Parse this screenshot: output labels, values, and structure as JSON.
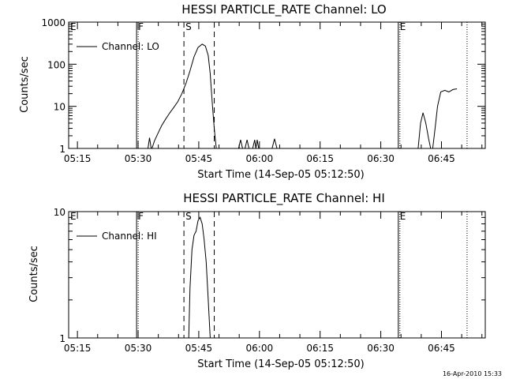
{
  "footer_timestamp": "16-Apr-2010 15:33",
  "chart_data": [
    {
      "type": "line",
      "title": "HESSI PARTICLE_RATE Channel: LO",
      "xlabel": "Start Time (14-Sep-05 05:12:50)",
      "ylabel": "Counts/sec",
      "yscale": "log",
      "xlim_min": [
        0,
        103
      ],
      "ylim": [
        1,
        1000
      ],
      "x_ticks_min": [
        2.17,
        17.17,
        32.17,
        47.17,
        62.17,
        77.17,
        92.17
      ],
      "x_tick_labels": [
        "05:15",
        "05:30",
        "05:45",
        "06:00",
        "06:15",
        "06:30",
        "06:45"
      ],
      "y_ticks": [
        1,
        10,
        100,
        1000
      ],
      "y_tick_labels": [
        "1",
        "10",
        "100",
        "1000"
      ],
      "legend": "Channel: LO",
      "markers": [
        {
          "label": "E",
          "x_min": 0,
          "style": "solid"
        },
        {
          "label": "F",
          "x_min": 16.8,
          "style": "solid"
        },
        {
          "label": "S",
          "x_min": 28.5,
          "style": "dashed"
        },
        {
          "label": "",
          "x_min": 36.0,
          "style": "dashed"
        },
        {
          "label": "E",
          "x_min": 81.5,
          "style": "solid"
        },
        {
          "label": "",
          "x_min": 98.5,
          "style": "dotted"
        }
      ],
      "series": [
        {
          "segments": [
            [
              [
                19.6,
                1
              ],
              [
                20.0,
                1.8
              ],
              [
                20.4,
                1
              ]
            ],
            [
              [
                20.6,
                1
              ],
              [
                21.2,
                1.5
              ],
              [
                22.0,
                2.2
              ],
              [
                23.0,
                3.5
              ],
              [
                24.0,
                5
              ],
              [
                25.0,
                7
              ],
              [
                26.0,
                9.5
              ],
              [
                27.0,
                13
              ],
              [
                28.0,
                20
              ],
              [
                29.0,
                35
              ],
              [
                30.0,
                70
              ],
              [
                31.0,
                150
              ],
              [
                32.0,
                250
              ],
              [
                33.0,
                300
              ],
              [
                33.8,
                270
              ],
              [
                34.5,
                160
              ],
              [
                35.0,
                60
              ],
              [
                35.5,
                12
              ],
              [
                36.0,
                3
              ],
              [
                36.5,
                1
              ]
            ],
            [
              [
                42.0,
                1
              ],
              [
                42.5,
                1.6
              ],
              [
                43.0,
                1
              ]
            ],
            [
              [
                43.6,
                1
              ],
              [
                44.1,
                1.6
              ],
              [
                44.6,
                1
              ]
            ],
            [
              [
                45.5,
                1
              ],
              [
                46.0,
                1.6
              ],
              [
                46.3,
                1
              ],
              [
                46.6,
                1.6
              ],
              [
                47.0,
                1
              ]
            ],
            [
              [
                50.3,
                1
              ],
              [
                50.9,
                1.7
              ],
              [
                51.5,
                1
              ]
            ],
            [
              [
                86.4,
                1
              ],
              [
                87.0,
                4
              ],
              [
                87.6,
                7
              ],
              [
                88.3,
                4
              ],
              [
                89.0,
                1.7
              ],
              [
                89.5,
                1
              ]
            ],
            [
              [
                90.0,
                1
              ],
              [
                90.5,
                2.5
              ],
              [
                91.2,
                10
              ],
              [
                92.0,
                22
              ],
              [
                93.0,
                24
              ],
              [
                94.0,
                22
              ],
              [
                95.0,
                25
              ],
              [
                96.0,
                26
              ]
            ]
          ]
        }
      ]
    },
    {
      "type": "line",
      "title": "HESSI PARTICLE_RATE Channel: HI",
      "xlabel": "Start Time (14-Sep-05 05:12:50)",
      "ylabel": "Counts/sec",
      "yscale": "log",
      "xlim_min": [
        0,
        103
      ],
      "ylim": [
        1,
        10
      ],
      "x_ticks_min": [
        2.17,
        17.17,
        32.17,
        47.17,
        62.17,
        77.17,
        92.17
      ],
      "x_tick_labels": [
        "05:15",
        "05:30",
        "05:45",
        "06:00",
        "06:15",
        "06:30",
        "06:45"
      ],
      "y_ticks": [
        1,
        10
      ],
      "y_tick_labels": [
        "1",
        "10"
      ],
      "legend": "Channel: HI",
      "markers": [
        {
          "label": "E",
          "x_min": 0,
          "style": "solid"
        },
        {
          "label": "F",
          "x_min": 16.8,
          "style": "solid"
        },
        {
          "label": "S",
          "x_min": 28.5,
          "style": "dashed"
        },
        {
          "label": "",
          "x_min": 36.0,
          "style": "dashed"
        },
        {
          "label": "E",
          "x_min": 81.5,
          "style": "solid"
        },
        {
          "label": "",
          "x_min": 98.5,
          "style": "dotted"
        }
      ],
      "series": [
        {
          "segments": [
            [
              [
                29.7,
                1
              ],
              [
                30.0,
                2.5
              ],
              [
                30.5,
                5
              ],
              [
                31.0,
                6.5
              ],
              [
                31.5,
                7
              ],
              [
                32.0,
                8.5
              ],
              [
                32.5,
                9
              ],
              [
                33.0,
                8
              ],
              [
                33.5,
                6
              ],
              [
                34.0,
                4
              ],
              [
                34.5,
                2
              ],
              [
                35.0,
                1
              ]
            ]
          ]
        }
      ]
    }
  ]
}
